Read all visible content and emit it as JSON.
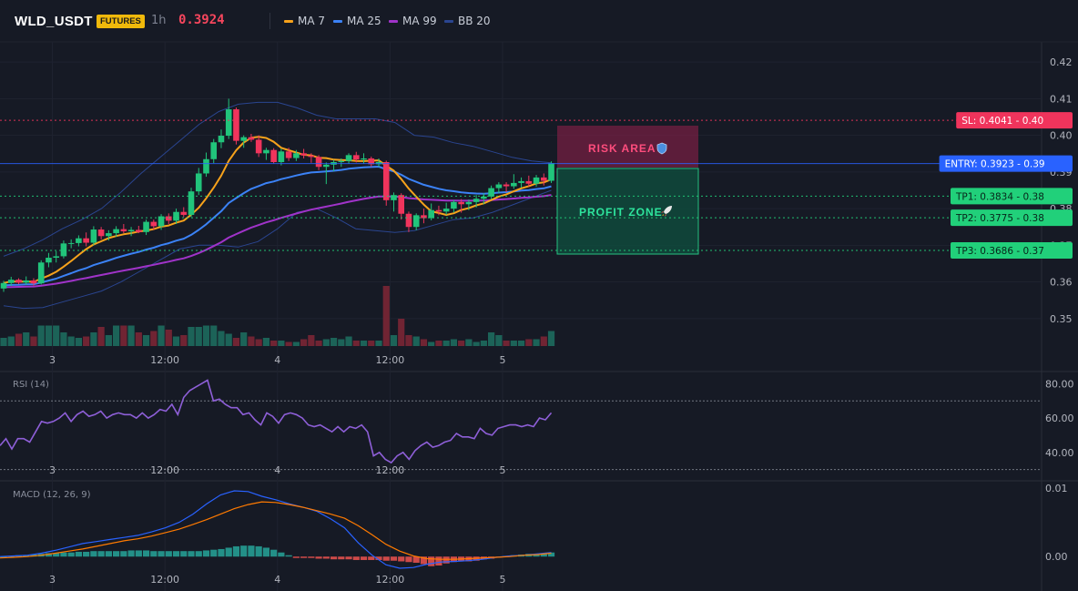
{
  "header": {
    "symbol": "WLD_USDT",
    "badge": "FUTURES",
    "timeframe": "1h",
    "price": "0.3924",
    "legend": [
      {
        "name": "MA 7",
        "color": "#f7a21b"
      },
      {
        "name": "MA 25",
        "color": "#3b82f6"
      },
      {
        "name": "MA 99",
        "color": "#a033c9"
      },
      {
        "name": "BB 20",
        "color": "#2a4590"
      }
    ]
  },
  "trade": {
    "risk_label": "RISK AREA",
    "profit_label": "PROFIT ZONE",
    "levels": [
      {
        "label": "SL: 0.4041",
        "axis": "0.40",
        "value": 0.4041,
        "color": "#f0345c"
      },
      {
        "label": "ENTRY: 0.3923",
        "axis": "0.39",
        "value": 0.3923,
        "color": "#2962ff"
      },
      {
        "label": "TP1: 0.3834",
        "axis": "0.38",
        "value": 0.3834,
        "color": "#21d07a"
      },
      {
        "label": "TP2: 0.3775",
        "axis": "0.38",
        "value": 0.3775,
        "color": "#21d07a"
      },
      {
        "label": "TP3: 0.3686",
        "axis": "0.37",
        "value": 0.3686,
        "color": "#21d07a"
      }
    ]
  },
  "chart_data": [
    {
      "type": "candlestick",
      "title": "WLD_USDT 1h",
      "y_ticks": [
        "0.42",
        "0.41",
        "0.40",
        "0.39",
        "0.38",
        "0.37",
        "0.36",
        "0.35"
      ],
      "y_tick_values": [
        0.42,
        0.41,
        0.4,
        0.39,
        0.38,
        0.37,
        0.36,
        0.35
      ],
      "ylim": [
        0.3425,
        0.4255
      ],
      "x_ticks": [
        "3",
        "12:00",
        "4",
        "12:00",
        "5"
      ],
      "candles_ohlc": [
        [
          0.3582,
          0.3603,
          0.3573,
          0.3597
        ],
        [
          0.3597,
          0.3614,
          0.3589,
          0.3606
        ],
        [
          0.3606,
          0.361,
          0.3594,
          0.3598
        ],
        [
          0.3598,
          0.3615,
          0.3592,
          0.3604
        ],
        [
          0.3604,
          0.361,
          0.359,
          0.3596
        ],
        [
          0.3596,
          0.3659,
          0.3593,
          0.3653
        ],
        [
          0.3653,
          0.3679,
          0.364,
          0.3666
        ],
        [
          0.3666,
          0.3684,
          0.3653,
          0.367
        ],
        [
          0.367,
          0.3713,
          0.3664,
          0.3705
        ],
        [
          0.3705,
          0.3716,
          0.3692,
          0.3706
        ],
        [
          0.3706,
          0.3727,
          0.3697,
          0.3719
        ],
        [
          0.3719,
          0.3735,
          0.3697,
          0.3707
        ],
        [
          0.3707,
          0.3752,
          0.37,
          0.3743
        ],
        [
          0.3743,
          0.375,
          0.3716,
          0.3725
        ],
        [
          0.3725,
          0.3741,
          0.3713,
          0.3733
        ],
        [
          0.3733,
          0.3752,
          0.3723,
          0.3744
        ],
        [
          0.3744,
          0.3758,
          0.3733,
          0.3738
        ],
        [
          0.3738,
          0.375,
          0.3725,
          0.3742
        ],
        [
          0.3742,
          0.3753,
          0.3733,
          0.3736
        ],
        [
          0.3736,
          0.377,
          0.3728,
          0.3764
        ],
        [
          0.3764,
          0.377,
          0.3742,
          0.3752
        ],
        [
          0.3752,
          0.3785,
          0.3742,
          0.3779
        ],
        [
          0.3779,
          0.3787,
          0.3758,
          0.3767
        ],
        [
          0.3767,
          0.38,
          0.3758,
          0.3791
        ],
        [
          0.3791,
          0.3804,
          0.3777,
          0.3783
        ],
        [
          0.3783,
          0.3857,
          0.3777,
          0.3847
        ],
        [
          0.3847,
          0.3911,
          0.3837,
          0.3896
        ],
        [
          0.3896,
          0.3953,
          0.3887,
          0.3935
        ],
        [
          0.3935,
          0.399,
          0.3924,
          0.3981
        ],
        [
          0.3981,
          0.4016,
          0.3965,
          0.3999
        ],
        [
          0.3999,
          0.41,
          0.399,
          0.4071
        ],
        [
          0.4071,
          0.4076,
          0.3975,
          0.3985
        ],
        [
          0.3985,
          0.4,
          0.3966,
          0.3995
        ],
        [
          0.3995,
          0.4004,
          0.3982,
          0.3988
        ],
        [
          0.3988,
          0.4,
          0.3941,
          0.3951
        ],
        [
          0.3951,
          0.3966,
          0.3933,
          0.396
        ],
        [
          0.396,
          0.3965,
          0.3923,
          0.3927
        ],
        [
          0.3927,
          0.3964,
          0.3918,
          0.3956
        ],
        [
          0.3956,
          0.3966,
          0.393,
          0.3938
        ],
        [
          0.3938,
          0.396,
          0.393,
          0.3951
        ],
        [
          0.3951,
          0.3963,
          0.3937,
          0.3945
        ],
        [
          0.3945,
          0.3951,
          0.3925,
          0.3941
        ],
        [
          0.3941,
          0.3946,
          0.3905,
          0.3914
        ],
        [
          0.3914,
          0.3926,
          0.3867,
          0.392
        ],
        [
          0.392,
          0.3933,
          0.3902,
          0.3927
        ],
        [
          0.3927,
          0.3937,
          0.3914,
          0.393
        ],
        [
          0.393,
          0.3951,
          0.3922,
          0.3946
        ],
        [
          0.3946,
          0.3955,
          0.3926,
          0.3934
        ],
        [
          0.3934,
          0.3951,
          0.3923,
          0.3937
        ],
        [
          0.3937,
          0.3942,
          0.3914,
          0.3921
        ],
        [
          0.3921,
          0.3937,
          0.3914,
          0.3927
        ],
        [
          0.3927,
          0.3931,
          0.3808,
          0.3823
        ],
        [
          0.3823,
          0.3844,
          0.3792,
          0.3837
        ],
        [
          0.3837,
          0.3842,
          0.377,
          0.3786
        ],
        [
          0.3786,
          0.3792,
          0.3736,
          0.375
        ],
        [
          0.375,
          0.3787,
          0.3741,
          0.3782
        ],
        [
          0.3782,
          0.38,
          0.376,
          0.3774
        ],
        [
          0.3774,
          0.3814,
          0.3768,
          0.3796
        ],
        [
          0.3796,
          0.3808,
          0.3782,
          0.3792
        ],
        [
          0.3792,
          0.3816,
          0.3783,
          0.38
        ],
        [
          0.38,
          0.3823,
          0.3789,
          0.3818
        ],
        [
          0.3818,
          0.3826,
          0.3789,
          0.3812
        ],
        [
          0.3812,
          0.3825,
          0.3796,
          0.3818
        ],
        [
          0.3818,
          0.3837,
          0.3803,
          0.3827
        ],
        [
          0.3827,
          0.3842,
          0.3812,
          0.3833
        ],
        [
          0.3833,
          0.3863,
          0.3826,
          0.3856
        ],
        [
          0.3856,
          0.3872,
          0.3842,
          0.3866
        ],
        [
          0.3866,
          0.3872,
          0.3845,
          0.3861
        ],
        [
          0.3861,
          0.3894,
          0.3854,
          0.387
        ],
        [
          0.387,
          0.3885,
          0.3857,
          0.3875
        ],
        [
          0.3875,
          0.389,
          0.386,
          0.3868
        ],
        [
          0.3868,
          0.3892,
          0.386,
          0.3885
        ],
        [
          0.3885,
          0.3896,
          0.3863,
          0.3876
        ],
        [
          0.3876,
          0.3929,
          0.387,
          0.3924
        ]
      ],
      "volume": [
        12,
        14,
        18,
        20,
        14,
        30,
        30,
        30,
        20,
        14,
        12,
        14,
        20,
        28,
        16,
        30,
        30,
        30,
        20,
        16,
        22,
        30,
        24,
        14,
        16,
        28,
        28,
        30,
        30,
        22,
        18,
        12,
        20,
        14,
        10,
        12,
        8,
        8,
        6,
        6,
        10,
        16,
        8,
        10,
        12,
        10,
        14,
        8,
        8,
        8,
        8,
        88,
        16,
        40,
        16,
        14,
        10,
        6,
        8,
        8,
        10,
        8,
        10,
        6,
        8,
        20,
        16,
        8,
        8,
        8,
        10,
        10,
        14,
        22
      ],
      "bollinger_upper": [
        0.367,
        0.369,
        0.3715,
        0.3745,
        0.377,
        0.38,
        0.3845,
        0.3895,
        0.394,
        0.3985,
        0.403,
        0.4065,
        0.4085,
        0.409,
        0.409,
        0.4075,
        0.4055,
        0.4045,
        0.4045,
        0.4045,
        0.4035,
        0.4,
        0.3995,
        0.398,
        0.397,
        0.3955,
        0.394,
        0.393,
        0.3925
      ],
      "bollinger_lower": [
        0.3535,
        0.3528,
        0.353,
        0.3545,
        0.356,
        0.3575,
        0.36,
        0.363,
        0.366,
        0.369,
        0.37,
        0.37,
        0.3695,
        0.371,
        0.3745,
        0.379,
        0.38,
        0.3775,
        0.3745,
        0.374,
        0.3735,
        0.374,
        0.3755,
        0.377,
        0.3775,
        0.379,
        0.381,
        0.383,
        0.385
      ]
    },
    {
      "type": "line",
      "title": "RSI (14)",
      "y_ticks": [
        "80.00",
        "60.00",
        "40.00"
      ],
      "y_tick_values": [
        80,
        60,
        40
      ],
      "ylim": [
        24,
        86
      ],
      "bands": [
        70,
        30
      ],
      "x_ticks": [
        "3",
        "12:00",
        "4",
        "12:00",
        "5"
      ],
      "series": [
        {
          "values": [
            44,
            48,
            42,
            48,
            48,
            46,
            52,
            58,
            57,
            58,
            60,
            63,
            58,
            62,
            64,
            61,
            62,
            64,
            60,
            62,
            63,
            62,
            62,
            60,
            63,
            60,
            62,
            65,
            64,
            68,
            62,
            72,
            76,
            78,
            80,
            82,
            70,
            71,
            68,
            66,
            66,
            62,
            63,
            59,
            56,
            63,
            61,
            57,
            62,
            63,
            62,
            60,
            56,
            55,
            56,
            54,
            52,
            55,
            52,
            55,
            54,
            56,
            52,
            38,
            40,
            36,
            34,
            38,
            40,
            36,
            41,
            44,
            46,
            43,
            44,
            46,
            47,
            51,
            49,
            49,
            48,
            54,
            51,
            50,
            54,
            55,
            56,
            56,
            55,
            56,
            55,
            60,
            59,
            63
          ]
        }
      ]
    },
    {
      "type": "bar",
      "title": "MACD (12, 26, 9)",
      "y_ticks": [
        "0.01",
        "0.00"
      ],
      "y_tick_values": [
        0.01,
        0.0
      ],
      "ylim": [
        -0.0017,
        0.0108
      ],
      "x_ticks": [
        "3",
        "12:00",
        "4",
        "12:00",
        "5"
      ],
      "histogram": [
        0.0,
        0.0001,
        0.0002,
        0.0002,
        0.0003,
        0.0004,
        0.0005,
        0.0005,
        0.0006,
        0.0006,
        0.0007,
        0.0007,
        0.0008,
        0.0008,
        0.0008,
        0.0008,
        0.0008,
        0.0009,
        0.0009,
        0.0009,
        0.0008,
        0.0008,
        0.0008,
        0.0008,
        0.0008,
        0.0008,
        0.0008,
        0.0009,
        0.001,
        0.0011,
        0.0013,
        0.0015,
        0.0016,
        0.0016,
        0.0015,
        0.0013,
        0.001,
        0.0006,
        0.0002,
        -0.0002,
        -0.0002,
        -0.0002,
        -0.0003,
        -0.0003,
        -0.0004,
        -0.0004,
        -0.0004,
        -0.0005,
        -0.0005,
        -0.0005,
        -0.0005,
        -0.0006,
        -0.0006,
        -0.0007,
        -0.0008,
        -0.0009,
        -0.0011,
        -0.0014,
        -0.0013,
        -0.001,
        -0.0008,
        -0.0007,
        -0.0007,
        -0.0006,
        -0.0004,
        -0.0003,
        -0.0001,
        0.0001,
        0.0002,
        0.0003,
        0.0004,
        0.0004,
        0.0005,
        0.0006
      ],
      "series": [
        {
          "values": [
            0.0,
            0.0001,
            0.0002,
            0.0005,
            0.0009,
            0.0014,
            0.0019,
            0.0022,
            0.0025,
            0.0028,
            0.0031,
            0.0036,
            0.0042,
            0.005,
            0.0062,
            0.0077,
            0.009,
            0.0096,
            0.0095,
            0.0088,
            0.0083,
            0.0077,
            0.0072,
            0.0066,
            0.0055,
            0.0042,
            0.002,
            0.0002,
            -0.0012,
            -0.0017,
            -0.0016,
            -0.0011,
            -0.0008,
            -0.0007,
            -0.0006,
            -0.0004,
            -0.0001,
            0.0001,
            0.0002,
            0.0004,
            0.0006
          ]
        },
        {
          "values": [
            -0.0002,
            -0.0001,
            0.0,
            0.0002,
            0.0005,
            0.0008,
            0.0011,
            0.0015,
            0.0019,
            0.0023,
            0.0026,
            0.003,
            0.0035,
            0.004,
            0.0047,
            0.0054,
            0.0062,
            0.007,
            0.0076,
            0.008,
            0.0079,
            0.0076,
            0.0072,
            0.0067,
            0.0062,
            0.0056,
            0.0045,
            0.0032,
            0.0018,
            0.0008,
            0.0001,
            -0.0003,
            -0.0004,
            -0.0004,
            -0.0003,
            -0.0002,
            -0.0001,
            0.0,
            0.0002,
            0.0003,
            0.0005
          ]
        }
      ]
    }
  ]
}
